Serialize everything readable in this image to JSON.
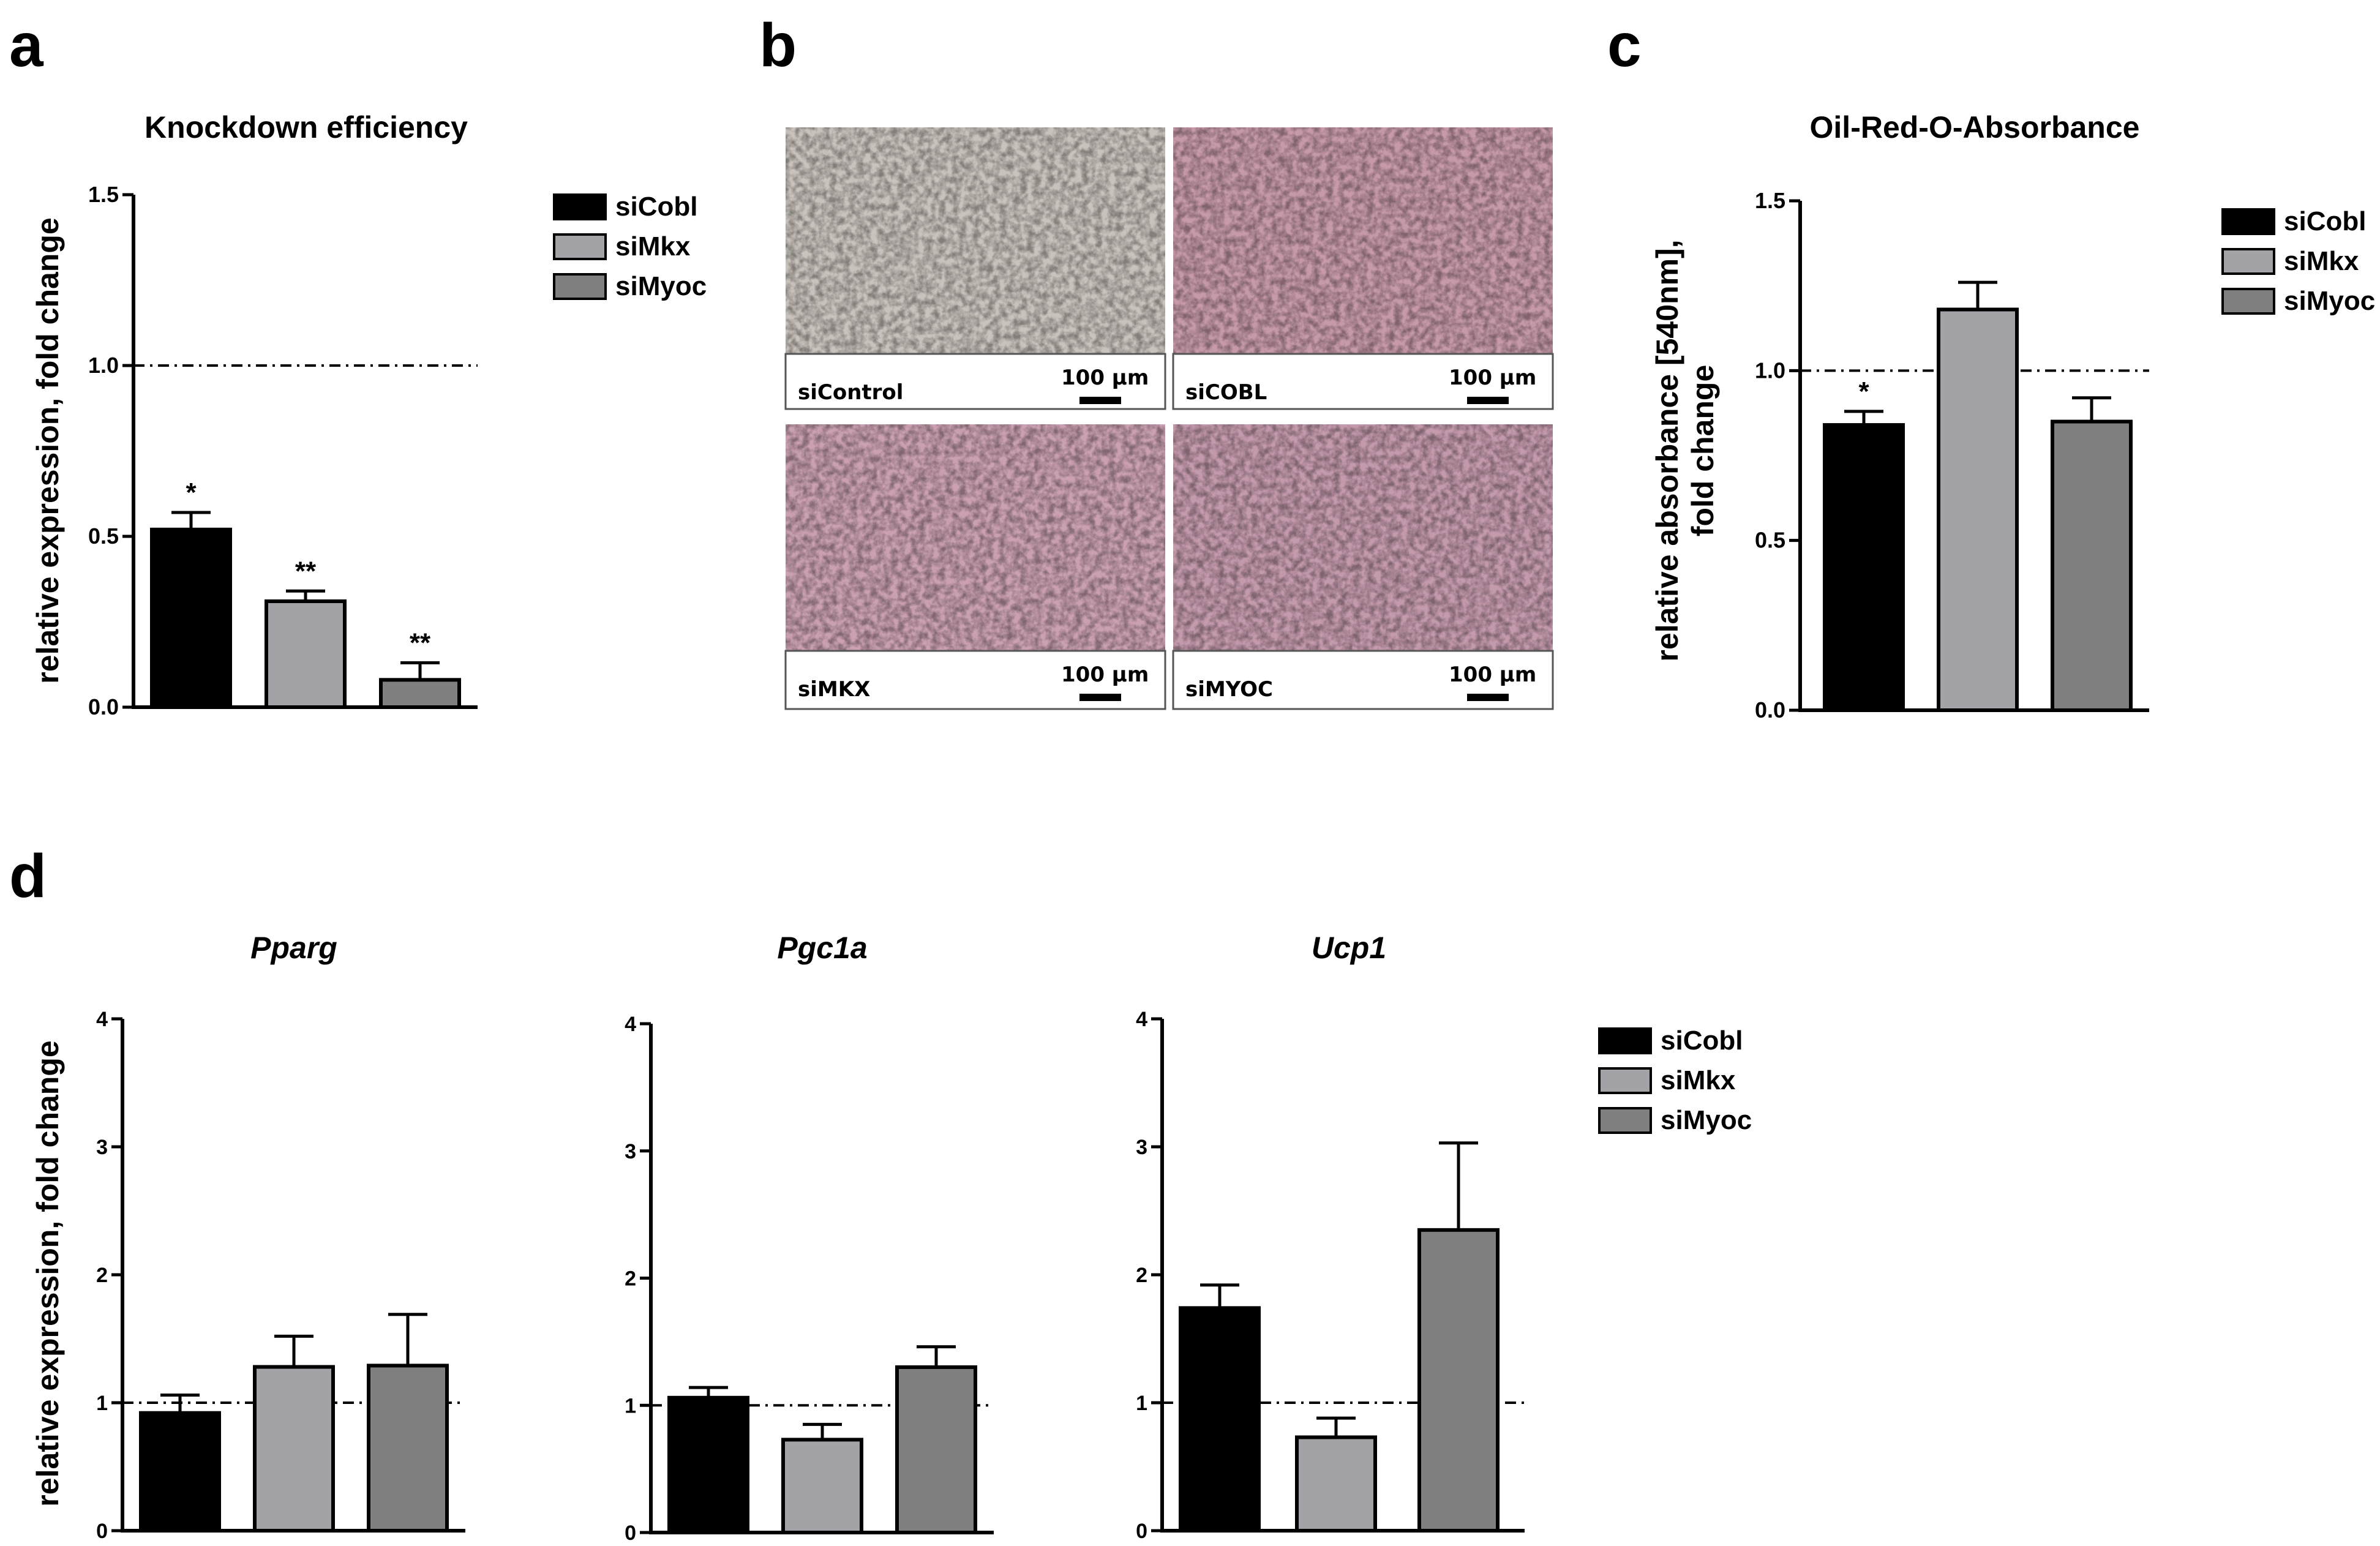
{
  "colors": {
    "siCobl": "#000000",
    "siMkx": "#a3a2a7",
    "siMyoc": "#7f7f7f"
  },
  "panels": {
    "a": "a",
    "b": "b",
    "c": "c",
    "d": "d"
  },
  "micro": {
    "images": [
      {
        "label": "siControl",
        "scale": "100 µm",
        "tint": "#c9c3bd"
      },
      {
        "label": "siCOBL",
        "scale": "100 µm",
        "tint": "#c79aa9"
      },
      {
        "label": "siMKX",
        "scale": "100 µm",
        "tint": "#caa0b2"
      },
      {
        "label": "siMYOC",
        "scale": "100 µm",
        "tint": "#c49aad"
      }
    ]
  },
  "chart_data": [
    {
      "id": "a",
      "type": "bar",
      "title": "Knockdown efficiency",
      "ylabel": [
        "relative expression, fold change"
      ],
      "ylim": [
        0,
        1.5
      ],
      "yticks": [
        "0.0",
        "0.5",
        "1.0",
        "1.5"
      ],
      "reference_line": 1.0,
      "title_italic": false,
      "series": [
        {
          "name": "siCobl",
          "value": 0.52,
          "error": 0.05,
          "sig": "*"
        },
        {
          "name": "siMkx",
          "value": 0.31,
          "error": 0.03,
          "sig": "**"
        },
        {
          "name": "siMyoc",
          "value": 0.08,
          "error": 0.05,
          "sig": "**"
        }
      ],
      "legend": [
        "siCobl",
        "siMkx",
        "siMyoc"
      ]
    },
    {
      "id": "c",
      "type": "bar",
      "title": "Oil-Red-O-Absorbance",
      "ylabel": [
        "relative absorbance [540nm],",
        "fold change"
      ],
      "ylim": [
        0,
        1.5
      ],
      "yticks": [
        "0.0",
        "0.5",
        "1.0",
        "1.5"
      ],
      "reference_line": 1.0,
      "title_italic": false,
      "series": [
        {
          "name": "siCobl",
          "value": 0.84,
          "error": 0.04,
          "sig": "*"
        },
        {
          "name": "siMkx",
          "value": 1.18,
          "error": 0.08,
          "sig": ""
        },
        {
          "name": "siMyoc",
          "value": 0.85,
          "error": 0.07,
          "sig": ""
        }
      ],
      "legend": [
        "siCobl",
        "siMkx",
        "siMyoc"
      ]
    },
    {
      "id": "d1",
      "type": "bar",
      "title": "Pparg",
      "ylabel": [
        "relative expression, fold change"
      ],
      "ylim": [
        0,
        4
      ],
      "yticks": [
        "0",
        "1",
        "2",
        "3",
        "4"
      ],
      "reference_line": 1.0,
      "title_italic": true,
      "series": [
        {
          "name": "siCobl",
          "value": 0.92,
          "error": 0.14,
          "sig": ""
        },
        {
          "name": "siMkx",
          "value": 1.28,
          "error": 0.24,
          "sig": ""
        },
        {
          "name": "siMyoc",
          "value": 1.29,
          "error": 0.4,
          "sig": ""
        }
      ]
    },
    {
      "id": "d2",
      "type": "bar",
      "title": "Pgc1a",
      "ylabel": [],
      "ylim": [
        0,
        4
      ],
      "yticks": [
        "0",
        "1",
        "2",
        "3",
        "4"
      ],
      "reference_line": 1.0,
      "title_italic": true,
      "series": [
        {
          "name": "siCobl",
          "value": 1.06,
          "error": 0.08,
          "sig": ""
        },
        {
          "name": "siMkx",
          "value": 0.73,
          "error": 0.12,
          "sig": ""
        },
        {
          "name": "siMyoc",
          "value": 1.3,
          "error": 0.16,
          "sig": ""
        }
      ]
    },
    {
      "id": "d3",
      "type": "bar",
      "title": "Ucp1",
      "ylabel": [],
      "ylim": [
        0,
        4
      ],
      "yticks": [
        "0",
        "1",
        "2",
        "3",
        "4"
      ],
      "reference_line": 1.0,
      "title_italic": true,
      "series": [
        {
          "name": "siCobl",
          "value": 1.74,
          "error": 0.18,
          "sig": ""
        },
        {
          "name": "siMkx",
          "value": 0.73,
          "error": 0.15,
          "sig": ""
        },
        {
          "name": "siMyoc",
          "value": 2.35,
          "error": 0.68,
          "sig": ""
        }
      ],
      "legend": [
        "siCobl",
        "siMkx",
        "siMyoc"
      ]
    }
  ]
}
